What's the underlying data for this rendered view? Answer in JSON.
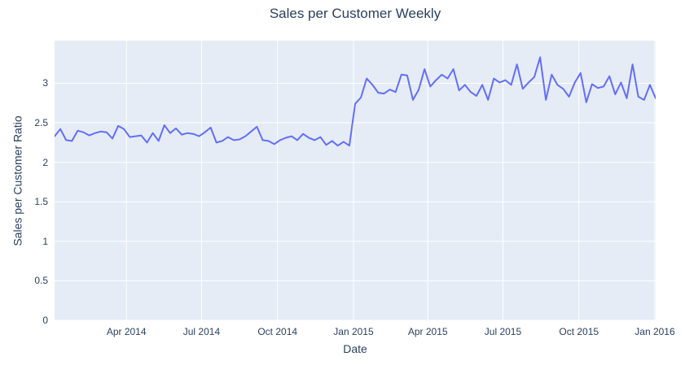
{
  "chart_data": {
    "type": "line",
    "title": "Sales per Customer Weekly",
    "xlabel": "Date",
    "ylabel": "Sales per Customer Ratio",
    "x_start_date": "2014-01-04",
    "x_interval_days": 7,
    "values": [
      2.33,
      2.42,
      2.28,
      2.27,
      2.4,
      2.38,
      2.34,
      2.37,
      2.39,
      2.38,
      2.3,
      2.46,
      2.42,
      2.32,
      2.33,
      2.34,
      2.25,
      2.37,
      2.27,
      2.47,
      2.37,
      2.43,
      2.35,
      2.37,
      2.36,
      2.33,
      2.38,
      2.44,
      2.25,
      2.27,
      2.32,
      2.28,
      2.29,
      2.33,
      2.39,
      2.45,
      2.28,
      2.27,
      2.23,
      2.28,
      2.31,
      2.33,
      2.28,
      2.36,
      2.31,
      2.28,
      2.32,
      2.22,
      2.27,
      2.21,
      2.26,
      2.21,
      2.74,
      2.82,
      3.06,
      2.98,
      2.88,
      2.87,
      2.92,
      2.89,
      3.11,
      3.1,
      2.79,
      2.92,
      3.18,
      2.96,
      3.04,
      3.11,
      3.06,
      3.18,
      2.91,
      2.98,
      2.89,
      2.84,
      2.98,
      2.79,
      3.06,
      3.01,
      3.04,
      2.98,
      3.24,
      2.93,
      3.01,
      3.08,
      3.33,
      2.79,
      3.11,
      2.98,
      2.93,
      2.83,
      3.01,
      3.13,
      2.76,
      2.99,
      2.94,
      2.96,
      3.09,
      2.86,
      3.01,
      2.81,
      3.24,
      2.83,
      2.79,
      2.98,
      2.81
    ],
    "yticks": [
      {
        "value": 0,
        "label": "0"
      },
      {
        "value": 0.5,
        "label": "0.5"
      },
      {
        "value": 1,
        "label": "1"
      },
      {
        "value": 1.5,
        "label": "1.5"
      },
      {
        "value": 2,
        "label": "2"
      },
      {
        "value": 2.5,
        "label": "2.5"
      },
      {
        "value": 3,
        "label": "3"
      }
    ],
    "xticks": [
      {
        "date": "2014-04-01",
        "label": "Apr 2014"
      },
      {
        "date": "2014-07-01",
        "label": "Jul 2014"
      },
      {
        "date": "2014-10-01",
        "label": "Oct 2014"
      },
      {
        "date": "2015-01-01",
        "label": "Jan 2015"
      },
      {
        "date": "2015-04-01",
        "label": "Apr 2015"
      },
      {
        "date": "2015-07-01",
        "label": "Jul 2015"
      },
      {
        "date": "2015-10-01",
        "label": "Oct 2015"
      },
      {
        "date": "2016-01-01",
        "label": "Jan 2016"
      }
    ],
    "ylim": [
      0,
      3.54
    ],
    "grid": true,
    "legend": "none",
    "colors": {
      "line": "#636efa",
      "plot_background": "#e5ecf6",
      "gridline": "#ffffff",
      "text": "#2a3f5f",
      "page_background": "#ffffff"
    }
  }
}
